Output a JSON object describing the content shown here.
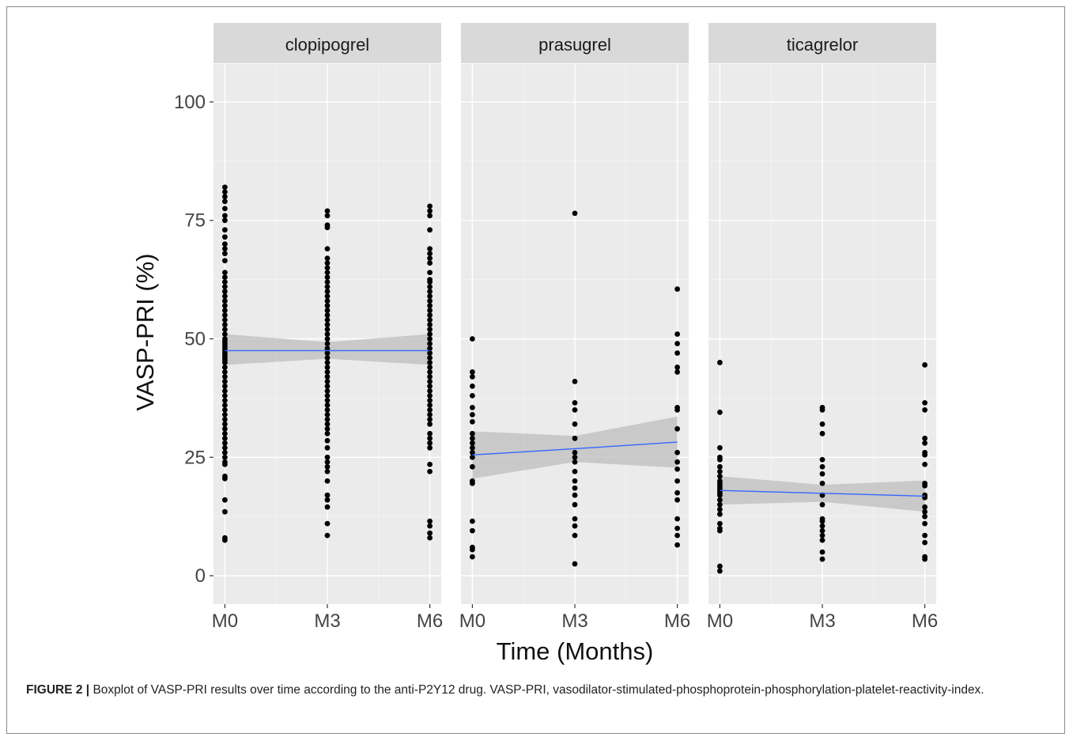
{
  "chart_data": {
    "type": "scatter",
    "ylabel": "VASP-PRI (%)",
    "xlabel": "Time (Months)",
    "x_categories": [
      "M0",
      "M3",
      "M6"
    ],
    "ylim": [
      -6,
      108
    ],
    "yticks": [
      0,
      25,
      50,
      75,
      100
    ],
    "grid": true,
    "point_color": "#000000",
    "fit_line_color": "#3366ff",
    "ci_band_color": "#bdbdbd",
    "panel_background": "#ebebeb",
    "strip_background": "#d9d9d9",
    "panels": [
      {
        "title": "clopipogrel",
        "points": {
          "M0": [
            82,
            81,
            80,
            79,
            77.5,
            76,
            75,
            73,
            71.5,
            70,
            69,
            68,
            66.5,
            64,
            63,
            62,
            61,
            60,
            59,
            58,
            57,
            56,
            55,
            54,
            53,
            52,
            51,
            50,
            49.5,
            49,
            48.5,
            48,
            47.5,
            47,
            46.5,
            46,
            45.5,
            45,
            44,
            43,
            42,
            41,
            40,
            39,
            38,
            37,
            36,
            35,
            34,
            33,
            32,
            31,
            30,
            29,
            28,
            27,
            26,
            25,
            24,
            23.5,
            21,
            20.5,
            16,
            13.5,
            8,
            7.5
          ],
          "M3": [
            77,
            76,
            74,
            73.5,
            69,
            67,
            66,
            65,
            64,
            63,
            62,
            61,
            60,
            59,
            58,
            57,
            56,
            55,
            54,
            53,
            52,
            51,
            50,
            49,
            48,
            47,
            46,
            45,
            44,
            43,
            42,
            41,
            40,
            39,
            38,
            37,
            36,
            35,
            34,
            33,
            32,
            31,
            30,
            28.5,
            27,
            25,
            24,
            23,
            22,
            20,
            17,
            16,
            14.5,
            11,
            8.5
          ],
          "M6": [
            78,
            77,
            76,
            73,
            69,
            68,
            67,
            66,
            64,
            62.5,
            62,
            61,
            60,
            59,
            58,
            57,
            56,
            55,
            54,
            53,
            52,
            51,
            50,
            49,
            48,
            47,
            46,
            45,
            44,
            43,
            42,
            41,
            40,
            39,
            38,
            37,
            36,
            35,
            34,
            33,
            32,
            30,
            29,
            28,
            27,
            23.5,
            22,
            11.5,
            10.5,
            9,
            8
          ]
        },
        "fit": [
          47.5,
          47.5,
          47.5
        ],
        "ci_lower": [
          44.5,
          45.8,
          44.5
        ],
        "ci_upper": [
          51,
          49.3,
          51
        ]
      },
      {
        "title": "prasugrel",
        "points": {
          "M0": [
            50,
            43,
            42,
            40,
            38,
            35.5,
            34,
            32.5,
            30,
            29,
            28,
            27,
            26,
            25,
            23,
            20,
            19.5,
            11.5,
            9.5,
            6,
            5.5,
            4
          ],
          "M3": [
            76.5,
            41,
            36.5,
            35,
            32,
            29,
            26,
            25,
            24,
            22,
            20,
            18.5,
            17,
            15,
            12,
            10.5,
            8.5,
            2.5
          ],
          "M6": [
            60.5,
            51,
            49,
            47,
            44,
            43,
            35.5,
            35,
            31,
            26,
            24,
            22.5,
            20,
            17.5,
            16,
            12,
            10,
            8.5,
            6.5
          ]
        },
        "fit": [
          25.5,
          26.8,
          28.2
        ],
        "ci_lower": [
          20.5,
          24,
          22.8
        ],
        "ci_upper": [
          30.5,
          29.5,
          33.6
        ]
      },
      {
        "title": "ticagrelor",
        "points": {
          "M0": [
            45,
            34.5,
            27,
            25,
            24.5,
            23,
            22,
            21,
            20,
            19.5,
            19,
            18.5,
            18,
            17.5,
            17,
            16,
            15,
            14,
            13,
            11,
            10,
            9.5,
            2,
            1
          ],
          "M3": [
            35.5,
            35,
            32,
            30,
            24.5,
            23,
            21.5,
            19.5,
            17,
            15,
            12,
            11.5,
            10.5,
            9.5,
            8.5,
            7.5,
            5,
            3.5
          ],
          "M6": [
            44.5,
            36.5,
            35,
            29,
            28,
            26,
            25.5,
            23.5,
            19.5,
            19,
            17,
            16.5,
            14.5,
            13.5,
            12.5,
            11,
            8.5,
            7,
            4,
            3.5
          ]
        },
        "fit": [
          18,
          17.4,
          16.8
        ],
        "ci_lower": [
          15,
          15.6,
          13.5
        ],
        "ci_upper": [
          21,
          19.2,
          20.1
        ]
      }
    ]
  },
  "caption": {
    "label": "FIGURE 2 |",
    "text": " Boxplot of VASP-PRI results over time according to the anti-P2Y12 drug. VASP-PRI, vasodilator-stimulated-phosphoprotein-phosphorylation-platelet-reactivity-index."
  }
}
